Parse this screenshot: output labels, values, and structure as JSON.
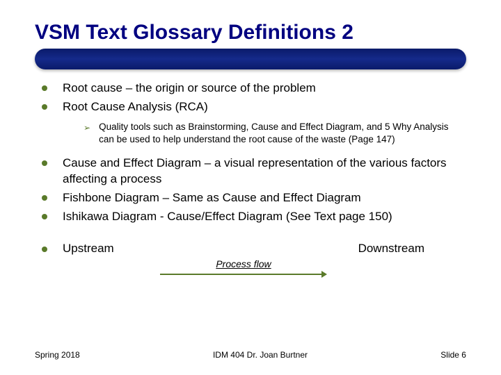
{
  "slide": {
    "title": "VSM Text Glossary Definitions 2",
    "bullets": [
      {
        "text": "Root cause – the origin or source of the problem"
      },
      {
        "text": "Root Cause Analysis (RCA)"
      }
    ],
    "sub_bullet": "Quality tools such as Brainstorming, Cause and Effect Diagram, and 5 Why Analysis can be used to help understand the root cause of the waste  (Page 147)",
    "bullets2": [
      {
        "text": "Cause and Effect Diagram – a visual representation of the various factors affecting a process"
      },
      {
        "text": "Fishbone Diagram – Same as Cause and Effect Diagram"
      },
      {
        "text": "Ishikawa Diagram  - Cause/Effect Diagram (See Text page 150)"
      }
    ],
    "stream": {
      "upstream": "Upstream",
      "downstream": "Downstream",
      "flow_label": "Process flow"
    },
    "footer": {
      "left": "Spring 2018",
      "center": "IDM 404 Dr. Joan Burtner",
      "right": "Slide 6"
    }
  },
  "colors": {
    "title_color": "#000080",
    "bullet_dot": "#5a7a2a",
    "bar_gradient_top": "#0a1a6a",
    "bar_gradient_mid": "#152a8a",
    "background": "#ffffff",
    "text": "#000000"
  },
  "typography": {
    "title_fontsize": 30,
    "main_bullet_fontsize": 17,
    "sub_bullet_fontsize": 13.5,
    "flow_label_fontsize": 14,
    "footer_fontsize": 12,
    "font_family": "Arial"
  },
  "layout": {
    "slide_width": 720,
    "slide_height": 540,
    "title_bar_height": 30,
    "title_bar_radius": 15,
    "arrow_length": 240
  }
}
